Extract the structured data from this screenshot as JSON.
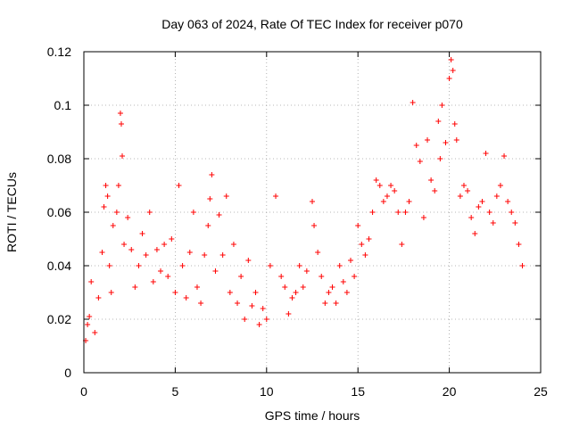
{
  "chart_data": {
    "type": "scatter",
    "title": "Day 063 of 2024, Rate Of TEC Index for receiver p070",
    "xlabel": "GPS time / hours",
    "ylabel": "ROTI / TECUs",
    "xlim": [
      0,
      25
    ],
    "ylim": [
      0,
      0.12
    ],
    "xticks": [
      0,
      5,
      10,
      15,
      20,
      25
    ],
    "xtick_labels": [
      "0",
      "5",
      "10",
      "15",
      "20",
      "25"
    ],
    "yticks": [
      0,
      0.02,
      0.04,
      0.06,
      0.08,
      0.1,
      0.12
    ],
    "ytick_labels": [
      "0",
      "0.02",
      "0.04",
      "0.06",
      "0.08",
      "0.1",
      "0.12"
    ],
    "grid": true,
    "marker": "plus",
    "color": "#ff0000",
    "series": [
      {
        "name": "ROTI",
        "x": [
          0.1,
          0.2,
          0.3,
          0.4,
          0.6,
          0.8,
          1.0,
          1.1,
          1.2,
          1.3,
          1.4,
          1.5,
          1.6,
          1.8,
          1.9,
          2.0,
          2.05,
          2.1,
          2.2,
          2.4,
          2.6,
          2.8,
          3.0,
          3.2,
          3.4,
          3.6,
          3.8,
          4.0,
          4.2,
          4.4,
          4.6,
          4.8,
          5.0,
          5.2,
          5.4,
          5.6,
          5.8,
          6.0,
          6.2,
          6.4,
          6.6,
          6.8,
          6.9,
          7.0,
          7.2,
          7.4,
          7.6,
          7.8,
          8.0,
          8.2,
          8.4,
          8.6,
          8.8,
          9.0,
          9.2,
          9.4,
          9.6,
          9.8,
          10.0,
          10.2,
          10.5,
          10.8,
          11.0,
          11.2,
          11.4,
          11.6,
          11.8,
          12.0,
          12.2,
          12.5,
          12.6,
          12.8,
          13.0,
          13.2,
          13.4,
          13.6,
          13.8,
          14.0,
          14.2,
          14.4,
          14.6,
          14.8,
          15.0,
          15.2,
          15.4,
          15.6,
          15.8,
          16.0,
          16.2,
          16.4,
          16.6,
          16.8,
          17.0,
          17.2,
          17.4,
          17.6,
          17.8,
          18.0,
          18.2,
          18.4,
          18.6,
          18.8,
          19.0,
          19.2,
          19.4,
          19.5,
          19.6,
          19.8,
          20.0,
          20.1,
          20.2,
          20.3,
          20.4,
          20.6,
          20.8,
          21.0,
          21.2,
          21.4,
          21.6,
          21.8,
          22.0,
          22.2,
          22.4,
          22.6,
          22.8,
          23.0,
          23.2,
          23.4,
          23.6,
          23.8,
          24.0
        ],
        "y": [
          0.012,
          0.018,
          0.021,
          0.034,
          0.015,
          0.028,
          0.045,
          0.062,
          0.07,
          0.066,
          0.04,
          0.03,
          0.055,
          0.06,
          0.07,
          0.097,
          0.093,
          0.081,
          0.048,
          0.058,
          0.046,
          0.032,
          0.04,
          0.052,
          0.044,
          0.06,
          0.034,
          0.046,
          0.038,
          0.048,
          0.036,
          0.05,
          0.03,
          0.07,
          0.04,
          0.028,
          0.045,
          0.06,
          0.032,
          0.026,
          0.044,
          0.055,
          0.065,
          0.074,
          0.038,
          0.059,
          0.044,
          0.066,
          0.03,
          0.048,
          0.026,
          0.036,
          0.02,
          0.042,
          0.025,
          0.03,
          0.018,
          0.024,
          0.02,
          0.04,
          0.066,
          0.036,
          0.032,
          0.022,
          0.028,
          0.03,
          0.04,
          0.032,
          0.038,
          0.064,
          0.055,
          0.045,
          0.036,
          0.026,
          0.03,
          0.032,
          0.026,
          0.04,
          0.034,
          0.03,
          0.042,
          0.036,
          0.055,
          0.048,
          0.044,
          0.05,
          0.06,
          0.072,
          0.07,
          0.064,
          0.066,
          0.07,
          0.068,
          0.06,
          0.048,
          0.06,
          0.064,
          0.101,
          0.085,
          0.079,
          0.058,
          0.087,
          0.072,
          0.068,
          0.094,
          0.08,
          0.1,
          0.086,
          0.11,
          0.117,
          0.113,
          0.093,
          0.087,
          0.066,
          0.07,
          0.068,
          0.058,
          0.052,
          0.062,
          0.064,
          0.082,
          0.06,
          0.056,
          0.066,
          0.07,
          0.081,
          0.064,
          0.06,
          0.056,
          0.048,
          0.04
        ]
      }
    ]
  }
}
